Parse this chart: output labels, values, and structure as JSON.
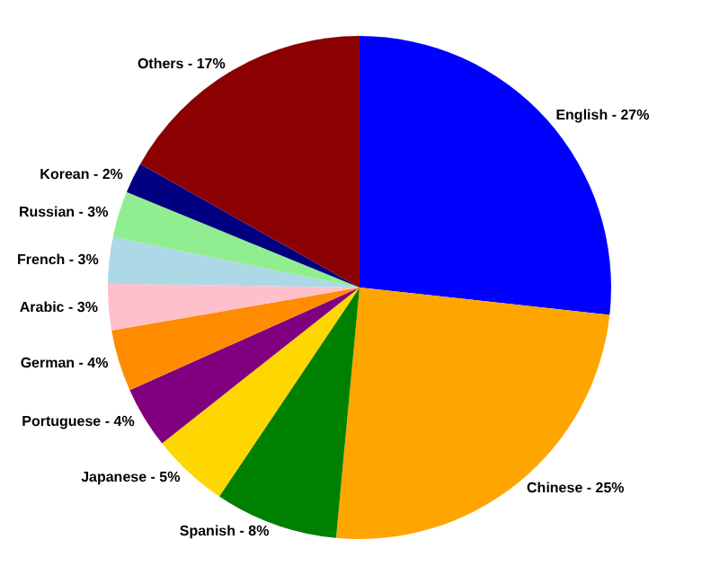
{
  "chart_data": {
    "type": "pie",
    "categories": [
      "English - 27%",
      "Chinese - 25%",
      "Spanish - 8%",
      "Japanese - 5%",
      "Portuguese - 4%",
      "German - 4%",
      "Arabic - 3%",
      "French - 3%",
      "Russian - 3%",
      "Korean - 2%",
      "Others - 17%"
    ],
    "values": [
      27,
      25,
      8,
      5,
      4,
      4,
      3,
      3,
      3,
      2,
      17
    ],
    "colors": [
      "#0000ff",
      "#ffa500",
      "#008000",
      "#ffd700",
      "#800080",
      "#ff8c00",
      "#ffc0cb",
      "#add8e6",
      "#90ee90",
      "#000080",
      "#8b0000"
    ],
    "legend": false
  }
}
